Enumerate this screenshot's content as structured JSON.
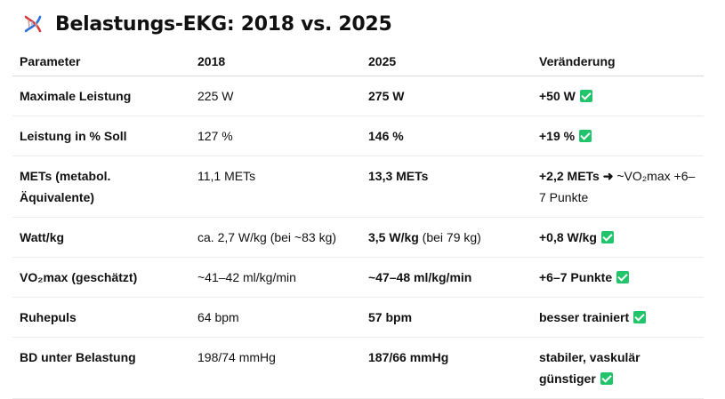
{
  "title": "Belastungs-EKG: 2018 vs. 2025",
  "icon": "dna-icon",
  "accent_check": "#21c46b",
  "headers": [
    "Parameter",
    "2018",
    "2025",
    "Veränderung"
  ],
  "rows": [
    {
      "param": "Maximale Leistung",
      "v2018": "225 W",
      "v2025": "275 W",
      "v2025_extra": "",
      "change": "+50 W",
      "change_extra": "",
      "check": true
    },
    {
      "param": "Leistung in % Soll",
      "v2018": "127 %",
      "v2025": "146 %",
      "v2025_extra": "",
      "change": "+19 %",
      "change_extra": "",
      "check": true
    },
    {
      "param": "METs (metabol. Äquivalente)",
      "v2018": "11,1 METs",
      "v2025": "13,3 METs",
      "v2025_extra": "",
      "change": "+2,2 METs ➜",
      "change_extra": " ~VO₂max +6–7 Punkte",
      "check": false
    },
    {
      "param": "Watt/kg",
      "v2018": "ca. 2,7 W/kg (bei ~83 kg)",
      "v2025": "3,5 W/kg",
      "v2025_extra": " (bei 79 kg)",
      "change": "+0,8 W/kg",
      "change_extra": "",
      "check": true
    },
    {
      "param": "VO₂max (geschätzt)",
      "v2018": "~41–42 ml/kg/min",
      "v2025": "~47–48 ml/kg/min",
      "v2025_extra": "",
      "change": "+6–7 Punkte",
      "change_extra": "",
      "check": true
    },
    {
      "param": "Ruhepuls",
      "v2018": "64 bpm",
      "v2025": "57 bpm",
      "v2025_extra": "",
      "change": "besser trainiert",
      "change_extra": "",
      "check": true
    },
    {
      "param": "BD unter Belastung",
      "v2018": "198/74 mmHg",
      "v2025": "187/66 mmHg",
      "v2025_extra": "",
      "change": "stabiler, vaskulär günstiger",
      "change_extra": "",
      "check": true
    }
  ]
}
